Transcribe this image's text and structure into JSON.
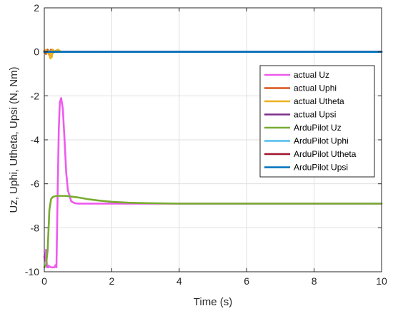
{
  "chart_data": {
    "type": "line",
    "title": "",
    "xlabel": "Time (s)",
    "ylabel": "Uz, Uphi, Utheta, Upsi (N, Nm)",
    "xlim": [
      0,
      10
    ],
    "ylim": [
      -10,
      2
    ],
    "xticks": [
      0,
      2,
      4,
      6,
      8,
      10
    ],
    "yticks": [
      -10,
      -8,
      -6,
      -4,
      -2,
      0,
      2
    ],
    "xtick_labels": [
      "0",
      "2",
      "4",
      "6",
      "8",
      "10"
    ],
    "ytick_labels": [
      "-10",
      "-8",
      "-6",
      "-4",
      "-2",
      "0",
      "2"
    ],
    "grid": true,
    "legend_position": "right",
    "series": [
      {
        "name": "actual Uz",
        "color": "#EE5AEE",
        "x": [
          0,
          0.02,
          0.05,
          0.08,
          0.1,
          0.12,
          0.15,
          0.2,
          0.25,
          0.3,
          0.33,
          0.36,
          0.4,
          0.43,
          0.46,
          0.5,
          0.55,
          0.6,
          0.65,
          0.7,
          0.8,
          0.9,
          1.0,
          1.2,
          1.5,
          2,
          3,
          4,
          6,
          8,
          10
        ],
        "y": [
          -9.3,
          -9.5,
          -9.0,
          -9.8,
          -9.7,
          -9.8,
          -9.75,
          -9.8,
          -9.8,
          -9.8,
          -9.7,
          -9.8,
          -6.0,
          -3.5,
          -2.3,
          -2.1,
          -2.6,
          -4.0,
          -5.5,
          -6.3,
          -6.8,
          -6.88,
          -6.9,
          -6.9,
          -6.9,
          -6.9,
          -6.9,
          -6.9,
          -6.9,
          -6.9,
          -6.9
        ]
      },
      {
        "name": "actual Uphi",
        "color": "#D95319",
        "x": [
          0,
          0.05,
          0.1,
          0.15,
          0.18,
          0.2,
          0.25,
          0.3,
          0.35,
          0.4,
          0.5,
          1,
          10
        ],
        "y": [
          0.05,
          -0.1,
          0.1,
          -0.15,
          0.05,
          0.1,
          -0.05,
          0.02,
          0.05,
          0.0,
          0.0,
          0.0,
          0.0
        ]
      },
      {
        "name": "actual Utheta",
        "color": "#EDB120",
        "x": [
          0,
          0.05,
          0.1,
          0.15,
          0.18,
          0.2,
          0.22,
          0.25,
          0.3,
          0.35,
          0.4,
          0.45,
          0.5,
          1,
          10
        ],
        "y": [
          0.0,
          0.1,
          -0.05,
          0.0,
          -0.3,
          0.05,
          -0.25,
          0.1,
          0.0,
          0.05,
          0.1,
          0.05,
          0.0,
          0.0,
          0.0
        ]
      },
      {
        "name": "actual Upsi",
        "color": "#7E2F8E",
        "x": [
          0,
          10
        ],
        "y": [
          0.0,
          0.0
        ]
      },
      {
        "name": "ArduPilot Uz",
        "color": "#77AC30",
        "x": [
          0,
          0.05,
          0.1,
          0.15,
          0.2,
          0.25,
          0.3,
          0.35,
          0.4,
          0.5,
          0.6,
          0.7,
          0.8,
          1.0,
          1.3,
          1.6,
          2.0,
          2.5,
          3.0,
          4.0,
          6.0,
          8.0,
          10.0
        ],
        "y": [
          -9.8,
          -9.7,
          -9.0,
          -7.2,
          -6.7,
          -6.6,
          -6.57,
          -6.56,
          -6.55,
          -6.55,
          -6.55,
          -6.56,
          -6.58,
          -6.62,
          -6.7,
          -6.76,
          -6.82,
          -6.86,
          -6.88,
          -6.9,
          -6.9,
          -6.9,
          -6.9
        ]
      },
      {
        "name": "ArduPilot Uphi",
        "color": "#4DBEEE",
        "x": [
          0,
          10
        ],
        "y": [
          0.0,
          0.0
        ]
      },
      {
        "name": "ArduPilot Utheta",
        "color": "#A2142F",
        "x": [
          0,
          10
        ],
        "y": [
          0.0,
          0.0
        ]
      },
      {
        "name": "ArduPilot Upsi",
        "color": "#0072BD",
        "x": [
          0,
          10
        ],
        "y": [
          0.0,
          0.0
        ]
      }
    ]
  }
}
